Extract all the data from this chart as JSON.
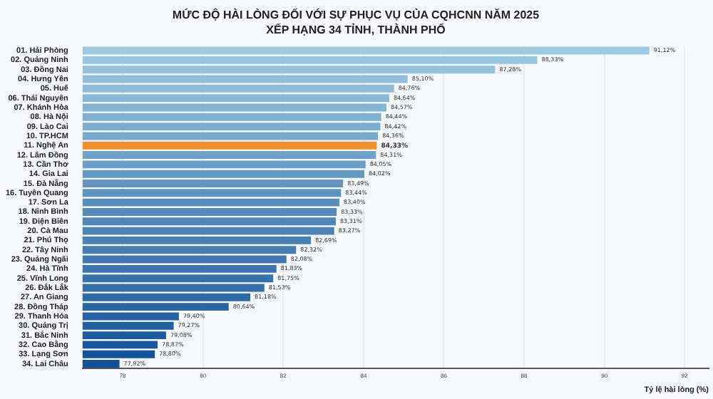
{
  "chart_data": {
    "type": "bar",
    "orientation": "horizontal",
    "title": "MỨC ĐỘ HÀI LÒNG ĐỐI VỚI SỰ PHỤC VỤ CỦA CQHCNN NĂM 2025",
    "subtitle": "XẾP HẠNG 34 TỈNH, THÀNH PHỐ",
    "xlabel": "Tỷ lệ hài lòng (%)",
    "categories": [
      "01. Hải Phòng",
      "02. Quảng Ninh",
      "03. Đồng Nai",
      "04. Hưng Yên",
      "05. Huế",
      "06. Thái Nguyên",
      "07. Khánh Hòa",
      "08. Hà Nội",
      "09. Lào Cai",
      "10. TP.HCM",
      "11. Nghệ An",
      "12. Lâm Đồng",
      "13. Cần Thơ",
      "14. Gia Lai",
      "15. Đà Nẵng",
      "16. Tuyên Quang",
      "17. Sơn La",
      "18. Ninh Bình",
      "19. Điện Biên",
      "20. Cà Mau",
      "21. Phú Thọ",
      "22. Tây Ninh",
      "23. Quảng Ngãi",
      "24. Hà Tĩnh",
      "25. Vĩnh Long",
      "26. Đắk Lắk",
      "27. An Giang",
      "28. Đồng Tháp",
      "29. Thanh Hóa",
      "30. Quảng Trị",
      "31. Bắc Ninh",
      "32. Cao Bằng",
      "33. Lạng Sơn",
      "34. Lai Châu"
    ],
    "values": [
      91.12,
      88.33,
      87.28,
      85.1,
      84.76,
      84.64,
      84.57,
      84.44,
      84.42,
      84.36,
      84.33,
      84.31,
      84.05,
      84.02,
      83.49,
      83.44,
      83.4,
      83.33,
      83.31,
      83.27,
      82.69,
      82.32,
      82.08,
      81.83,
      81.75,
      81.53,
      81.18,
      80.64,
      79.4,
      79.27,
      79.08,
      78.87,
      78.8,
      77.92
    ],
    "value_labels": [
      "91,12%",
      "88,33%",
      "87,28%",
      "85,10%",
      "84,76%",
      "84,64%",
      "84,57%",
      "84,44%",
      "84,42%",
      "84,36%",
      "84,33%",
      "84,31%",
      "84,05%",
      "84,02%",
      "83,49%",
      "83,44%",
      "83,40%",
      "83,33%",
      "83,31%",
      "83,27%",
      "82,69%",
      "82,32%",
      "82,08%",
      "81,83%",
      "81,75%",
      "81,53%",
      "81,18%",
      "80,64%",
      "79,40%",
      "79,27%",
      "79,08%",
      "78,87%",
      "78,80%",
      "77,92%"
    ],
    "colors": [
      "#9ecae1",
      "#9ac6df",
      "#95c3dc",
      "#91bfda",
      "#8dbbd8",
      "#89b8d6",
      "#84b4d3",
      "#80b0d1",
      "#7caccf",
      "#77a9cd",
      "#f0912f",
      "#6fa1c8",
      "#6a9ec6",
      "#669ac3",
      "#6296c1",
      "#5d93bf",
      "#598fbd",
      "#558bba",
      "#5187b8",
      "#4c84b6",
      "#4880b4",
      "#447cb1",
      "#3f79af",
      "#3b75ad",
      "#3771ab",
      "#326ea8",
      "#2e6aa6",
      "#2a66a4",
      "#2662a1",
      "#215f9f",
      "#1d5b9d",
      "#19579b",
      "#145498",
      "#105096"
    ],
    "xlim": [
      77,
      92.6
    ],
    "xticks": [
      78,
      80,
      82,
      84,
      86,
      88,
      90,
      92
    ],
    "grid": "x"
  }
}
